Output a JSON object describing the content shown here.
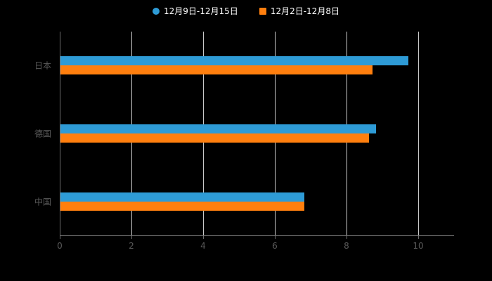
{
  "chart_data": {
    "type": "bar",
    "orientation": "horizontal",
    "title": "",
    "categories": [
      "日本",
      "德国",
      "中国"
    ],
    "series": [
      {
        "name": "12月9日-12月15日",
        "color": "#2E9BD6",
        "marker": "circle",
        "values": [
          9.7,
          8.8,
          6.8
        ]
      },
      {
        "name": "12月2日-12月8日",
        "color": "#FF7F0E",
        "marker": "square",
        "values": [
          8.7,
          8.6,
          6.8
        ]
      }
    ],
    "xlim": [
      0,
      11
    ],
    "xticks": [
      "0",
      "2",
      "4",
      "6",
      "8",
      "10"
    ],
    "xtick_values": [
      0,
      2,
      4,
      6,
      8,
      10
    ],
    "grid": true,
    "legend_position": "top-center"
  },
  "colors": {
    "background": "#000000",
    "legend_text": "#ffffff",
    "axis_text": "#5a5a5a",
    "grid_line": "#c9c9c9",
    "axis_line": "#6e6e6e",
    "series1": "#2E9BD6",
    "series2": "#FF7F0E"
  }
}
